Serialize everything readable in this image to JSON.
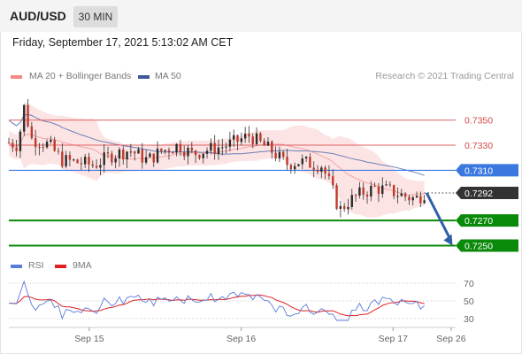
{
  "header": {
    "symbol": "AUD/USD",
    "timeframe": "30 MIN"
  },
  "datetime": "Friday, September 17, 2021 5:13:02 AM CET",
  "legend": {
    "items": [
      {
        "label": "MA 20 + Bollinger Bands",
        "color": "#f28b82"
      },
      {
        "label": "MA 50",
        "color": "#3c5a99"
      }
    ],
    "copyright": "Research © 2021 Trading Central"
  },
  "rsi_legend": {
    "items": [
      {
        "label": "RSI",
        "color": "#5b7bd8"
      },
      {
        "label": "9MA",
        "color": "#e02020"
      }
    ]
  },
  "chart_data": [
    {
      "type": "candlestick",
      "ylim": [
        0.7244,
        0.7378
      ],
      "xlim": [
        0,
        100
      ],
      "x_ticks": [
        {
          "x": 18,
          "label": "Sep 15"
        },
        {
          "x": 52,
          "label": "Sep 16"
        },
        {
          "x": 86,
          "label": "Sep 17"
        },
        {
          "x": 99,
          "label": "Sep 26"
        }
      ],
      "price_levels": [
        {
          "label": "0.7350",
          "value": 0.735,
          "kind": "resistance",
          "style": "thin-red",
          "color": "#e06060"
        },
        {
          "label": "0.7330",
          "value": 0.733,
          "kind": "resistance",
          "style": "thin-red",
          "color": "#e06060"
        },
        {
          "label": "0.7310",
          "value": 0.731,
          "kind": "pivot",
          "style": "blue",
          "color": "#3a78e0"
        },
        {
          "label": "0.7292",
          "value": 0.7292,
          "kind": "current",
          "style": "dotted",
          "color": "#333333"
        },
        {
          "label": "0.7270",
          "value": 0.727,
          "kind": "support",
          "style": "thick-green",
          "color": "#0a8a0a"
        },
        {
          "label": "0.7250",
          "value": 0.725,
          "kind": "support",
          "style": "thick-green",
          "color": "#0a8a0a"
        }
      ],
      "arrow": {
        "from_value": 0.7292,
        "to_value": 0.725,
        "color": "#2f5fa8"
      },
      "candle_count": 110
    },
    {
      "type": "line",
      "name": "RSI panel",
      "ylim": [
        22,
        78
      ],
      "y_ticks": [
        70,
        50,
        30
      ],
      "series": [
        {
          "name": "RSI",
          "color": "#5b7bd8"
        },
        {
          "name": "9MA",
          "color": "#e02020"
        }
      ]
    }
  ]
}
